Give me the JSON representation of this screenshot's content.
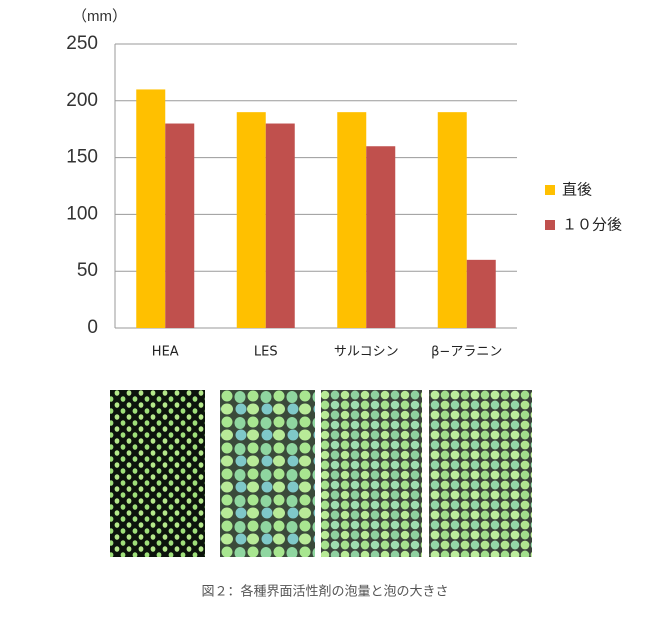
{
  "chart_data": {
    "type": "bar",
    "y_label": "（mm）",
    "categories": [
      "HEA",
      "LES",
      "サルコシン",
      "β−アラニン"
    ],
    "series": [
      {
        "name": "直後",
        "color": "#ffc000",
        "values": [
          210,
          190,
          190,
          190
        ]
      },
      {
        "name": "１０分後",
        "color": "#c0504d",
        "values": [
          180,
          180,
          160,
          60
        ]
      }
    ],
    "ylim": [
      0,
      250
    ],
    "yticks": [
      0,
      50,
      100,
      150,
      200,
      250
    ],
    "grid": true,
    "legend": "right"
  },
  "caption": "図２：各種界面活性剤の泡量と泡の大きさ"
}
